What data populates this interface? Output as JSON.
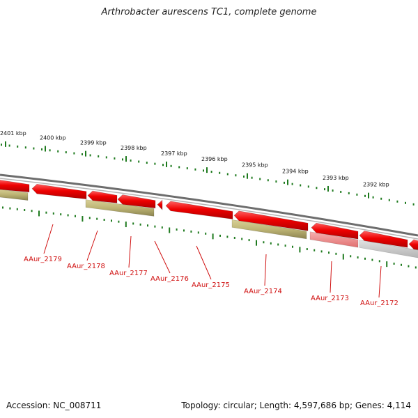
{
  "title": "Arthrobacter aurescens TC1, complete genome",
  "footer": {
    "accession": "Accession: NC_008711",
    "summary": "Topology: circular; Length: 4,597,686 bp; Genes: 4,114"
  },
  "ruler": {
    "labels": [
      "2401 kbp",
      "2400 kbp",
      "2399 kbp",
      "2398 kbp",
      "2397 kbp",
      "2396 kbp",
      "2395 kbp",
      "2394 kbp",
      "2393 kbp",
      "2392 kbp"
    ],
    "tick_color": "#1e7a1e"
  },
  "colors": {
    "cds": "#e00000",
    "cds_light": "#f08080",
    "rna": "#b8b070",
    "pseudo": "#c8c8c8",
    "backbone": "#888888",
    "label": "#d01010"
  },
  "gene_labels": [
    "AAur_2179",
    "AAur_2178",
    "AAur_2177",
    "AAur_2176",
    "AAur_2175",
    "AAur_2174",
    "AAur_2173",
    "AAur_2172"
  ]
}
